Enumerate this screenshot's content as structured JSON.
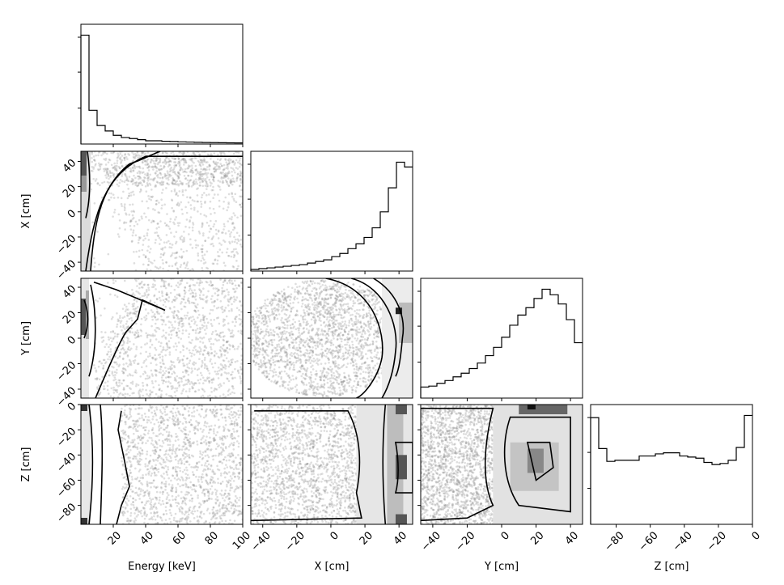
{
  "chart_data": {
    "type": "corner",
    "variables": [
      {
        "key": "energy",
        "label": "Energy [keV]",
        "range": [
          0,
          100
        ],
        "ticks": [
          20,
          40,
          60,
          80,
          100
        ],
        "tick_labels": [
          "20",
          "40",
          "60",
          "80",
          "100"
        ]
      },
      {
        "key": "x",
        "label": "X [cm]",
        "range": [
          -47,
          48
        ],
        "ticks": [
          -40,
          -20,
          0,
          20,
          40
        ],
        "tick_labels": [
          "−40",
          "−20",
          "0",
          "20",
          "40"
        ]
      },
      {
        "key": "y",
        "label": "Y [cm]",
        "range": [
          -47,
          47
        ],
        "ticks": [
          -40,
          -20,
          0,
          20,
          40
        ],
        "tick_labels": [
          "−40",
          "−20",
          "0",
          "20",
          "40"
        ]
      },
      {
        "key": "z",
        "label": "Z [cm]",
        "range": [
          -95,
          0
        ],
        "ticks": [
          -80,
          -60,
          -40,
          -20,
          0
        ],
        "tick_labels": [
          "−80",
          "−60",
          "−40",
          "−20",
          "0"
        ]
      }
    ],
    "histograms": [
      {
        "variable": "energy",
        "type": "step",
        "bins": 20,
        "counts": [
          100,
          31,
          17,
          12,
          8,
          6,
          5,
          4,
          3,
          3,
          2.5,
          2.3,
          2,
          1.8,
          1.6,
          1.4,
          1.3,
          1.2,
          1.1,
          1
        ]
      },
      {
        "variable": "x",
        "type": "step",
        "bins": 20,
        "counts": [
          1,
          1.5,
          2,
          2.5,
          3,
          3.5,
          4,
          5,
          6,
          7,
          9,
          11,
          14,
          17,
          21,
          27,
          37,
          52,
          68,
          65
        ]
      },
      {
        "variable": "y",
        "type": "step",
        "bins": 20,
        "counts": [
          12,
          13,
          16,
          19,
          23,
          27,
          32,
          38,
          46,
          55,
          66,
          79,
          90,
          98,
          108,
          118,
          112,
          102,
          85,
          60
        ]
      },
      {
        "variable": "z",
        "type": "step",
        "bins": 20,
        "counts": [
          100,
          71,
          59,
          60,
          60,
          60,
          64,
          64,
          66,
          67,
          67,
          64,
          63,
          62,
          58,
          56,
          57,
          60,
          72,
          102
        ]
      }
    ],
    "panels_2d": [
      {
        "x": "energy",
        "y": "x",
        "style": "scatter + density contours"
      },
      {
        "x": "energy",
        "y": "y",
        "style": "scatter + density contours"
      },
      {
        "x": "x",
        "y": "y",
        "style": "scatter + density contours"
      },
      {
        "x": "energy",
        "y": "z",
        "style": "scatter + density contours"
      },
      {
        "x": "x",
        "y": "z",
        "style": "scatter + density contours"
      },
      {
        "x": "y",
        "y": "z",
        "style": "scatter + density contours"
      }
    ],
    "colors": {
      "line": "#000000",
      "points": "#8a8a8a",
      "background": "#ffffff"
    },
    "grid": false
  }
}
